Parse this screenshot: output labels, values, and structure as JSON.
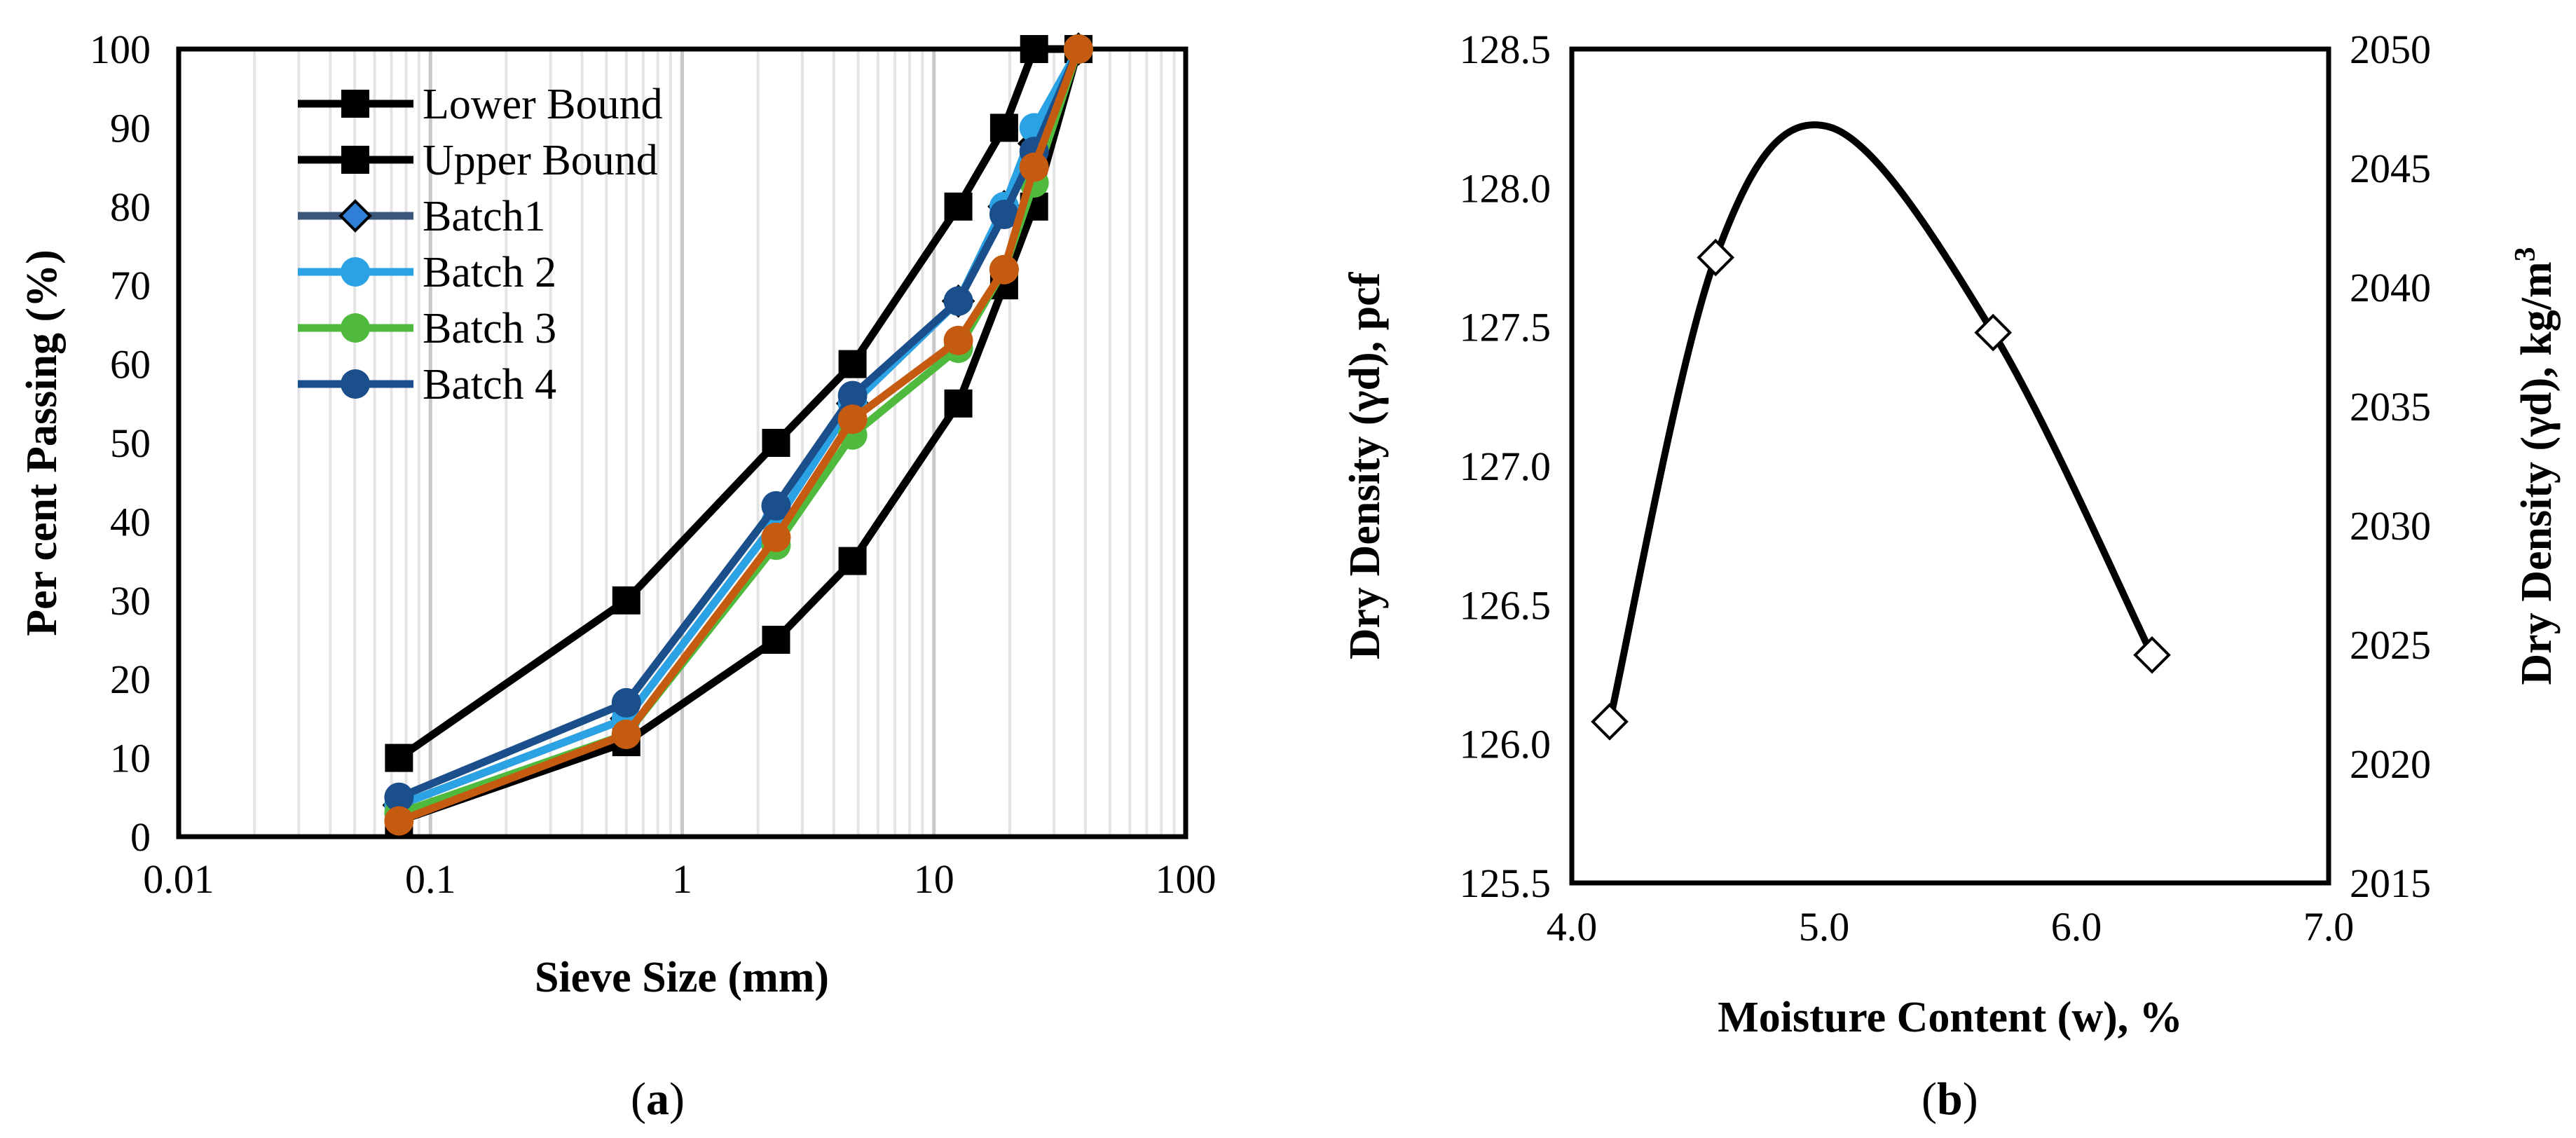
{
  "chart_data": [
    {
      "id": "a",
      "type": "line",
      "xscale": "log",
      "caption": "a",
      "xlabel": "Sieve Size (mm)",
      "ylabel": "Per cent Passing (%)",
      "xlim": [
        0.01,
        100
      ],
      "ylim": [
        0,
        100
      ],
      "xticks": [
        "0.01",
        "0.1",
        "1",
        "10",
        "100"
      ],
      "xtick_values": [
        0.01,
        0.1,
        1,
        10,
        100
      ],
      "yticks": [
        "0",
        "10",
        "20",
        "30",
        "40",
        "50",
        "60",
        "70",
        "80",
        "90",
        "100"
      ],
      "series": [
        {
          "name": "Lower Bound",
          "color": "#000000",
          "marker": "square",
          "x": [
            0.075,
            0.6,
            2.36,
            4.75,
            12.5,
            19,
            25,
            37.5
          ],
          "y": [
            2,
            12,
            25,
            35,
            55,
            70,
            80,
            100
          ]
        },
        {
          "name": "Upper Bound",
          "color": "#000000",
          "marker": "square",
          "x": [
            0.075,
            0.6,
            2.36,
            4.75,
            12.5,
            19,
            25,
            37.5
          ],
          "y": [
            10,
            30,
            50,
            60,
            80,
            90,
            100,
            100
          ]
        },
        {
          "name": "Batch1",
          "color": "#3a5678",
          "marker": "diamond",
          "markerFill": "#2f7fd6",
          "x": [
            0.075,
            0.6,
            2.36,
            4.75,
            12.5,
            19,
            25,
            37.5
          ],
          "y": [
            4,
            15,
            40,
            55,
            68,
            80,
            88,
            100
          ]
        },
        {
          "name": "Batch 2",
          "color": "#2aa2e3",
          "marker": "circle",
          "x": [
            0.075,
            0.6,
            2.36,
            4.75,
            12.5,
            19,
            25,
            37.5
          ],
          "y": [
            4,
            15,
            40,
            55,
            68,
            80,
            90,
            100
          ]
        },
        {
          "name": "Batch 3",
          "color": "#4fba3d",
          "marker": "circle",
          "x": [
            0.075,
            0.6,
            2.36,
            4.75,
            12.5,
            19,
            25,
            37.5
          ],
          "y": [
            3,
            13,
            37,
            51,
            62,
            72,
            83,
            100
          ]
        },
        {
          "name": "Batch 4",
          "color": "#1a4f8c",
          "marker": "circle",
          "x": [
            0.075,
            0.6,
            2.36,
            4.75,
            12.5,
            19,
            25,
            37.5
          ],
          "y": [
            5,
            17,
            42,
            56,
            68,
            79,
            87,
            100
          ]
        },
        {
          "name": "",
          "color": "#c55a11",
          "marker": "circle",
          "legend": false,
          "x": [
            0.075,
            0.6,
            2.36,
            4.75,
            12.5,
            19,
            25,
            37.5
          ],
          "y": [
            2,
            13,
            38,
            53,
            63,
            72,
            85,
            100
          ]
        }
      ]
    },
    {
      "id": "b",
      "type": "scatter",
      "caption": "b",
      "xlabel": "Moisture Content (w), %",
      "ylabel": "Dry Density (γd), pcf",
      "ylabel2_main": "Dry Density (γd), kg/m",
      "ylabel2_sup": "3",
      "xlim": [
        4.0,
        7.0
      ],
      "ylim": [
        125.5,
        128.5
      ],
      "ylim2": [
        2015,
        2050
      ],
      "xticks": [
        "4.0",
        "5.0",
        "6.0",
        "7.0"
      ],
      "xtick_values": [
        4.0,
        5.0,
        6.0,
        7.0
      ],
      "yticks": [
        "125.5",
        "126.0",
        "126.5",
        "127.0",
        "127.5",
        "128.0",
        "128.5"
      ],
      "ytick_values": [
        125.5,
        126.0,
        126.5,
        127.0,
        127.5,
        128.0,
        128.5
      ],
      "yticks2": [
        "2015",
        "2020",
        "2025",
        "2030",
        "2035",
        "2040",
        "2045",
        "2050"
      ],
      "ytick2_values": [
        2015,
        2020,
        2025,
        2030,
        2035,
        2040,
        2045,
        2050
      ],
      "points": {
        "x": [
          4.15,
          4.57,
          5.67,
          6.3
        ],
        "y": [
          126.08,
          127.75,
          127.48,
          126.32
        ]
      },
      "fit_curve": {
        "x": [
          4.15,
          4.57,
          5.02,
          5.67,
          6.3
        ],
        "y": [
          126.08,
          127.75,
          128.22,
          127.48,
          126.32
        ]
      }
    }
  ]
}
